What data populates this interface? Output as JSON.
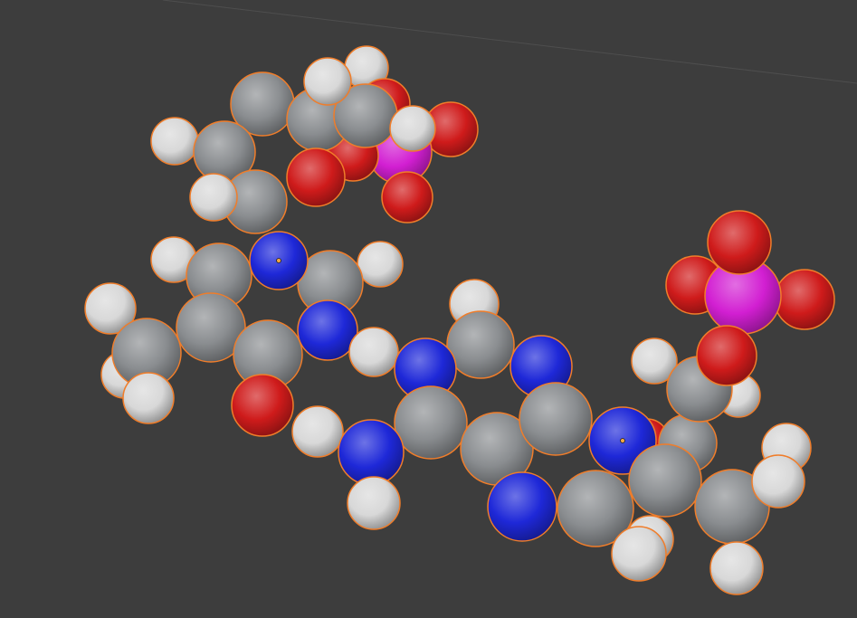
{
  "viewport": {
    "background": "#3d3d3d",
    "grid_line_color": "#4e4e4e",
    "selection_outline_color": "#f07d2a",
    "active_outline_color": "#f5a742"
  },
  "element_colors": {
    "C": "#8a8d90",
    "H": "#d8d8d8",
    "N": "#1e28d8",
    "O": "#cf1b1b",
    "P": "#d21fd2"
  },
  "scene": {
    "object_type": "molecule",
    "representation": "space-filling",
    "selected": true
  }
}
